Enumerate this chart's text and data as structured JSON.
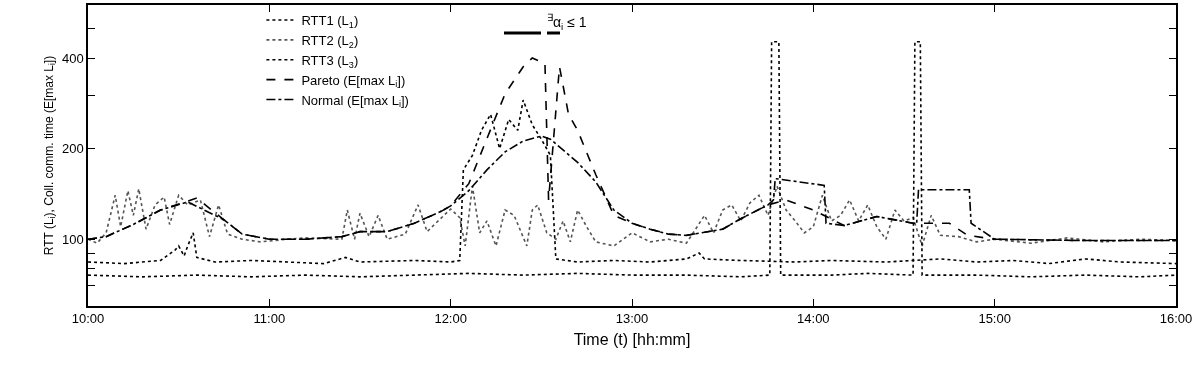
{
  "chart_data": {
    "type": "line",
    "xlabel": "Time (t) [hh:mm]",
    "ylabel": "RTT (L$_{i}$), Coll. comm. time (E[max L$_{i}$])",
    "annotations": [
      "$^{∃}$α$_{i}$ ≤ 1"
    ],
    "xlim": [
      10,
      16
    ],
    "xticks": [
      {
        "value": 10,
        "label": "10:00"
      },
      {
        "value": 11,
        "label": "11:00"
      },
      {
        "value": 12,
        "label": "12:00"
      },
      {
        "value": 13,
        "label": "13:00"
      },
      {
        "value": 14,
        "label": "14:00"
      },
      {
        "value": 15,
        "label": "15:00"
      },
      {
        "value": 16,
        "label": "16:00"
      }
    ],
    "ylim": [
      60,
      600
    ],
    "yticks": [
      {
        "value": 70,
        "label": null
      },
      {
        "value": 80,
        "label": null
      },
      {
        "value": 90,
        "label": null
      },
      100,
      200,
      {
        "value": 300,
        "label": null
      },
      400,
      {
        "value": 500,
        "label": null
      }
    ],
    "log": "y",
    "grid": false,
    "legend": "top left",
    "marker": "none",
    "series": [
      {
        "name": "RTT1 (L$_{1}$)",
        "color": "#000000",
        "line_style": "dotted",
        "x": [
          10,
          10.2,
          10.4,
          10.48,
          10.5,
          10.53,
          10.55,
          10.58,
          10.6,
          10.7,
          10.9,
          11.1,
          11.3,
          11.42,
          11.5,
          11.8,
          12,
          12.05,
          12.07,
          12.12,
          12.17,
          12.22,
          12.27,
          12.32,
          12.37,
          12.4,
          12.45,
          12.5,
          12.55,
          12.58,
          12.7,
          12.9,
          13.1,
          13.3,
          13.37,
          13.4,
          13.6,
          13.9,
          14.1,
          14.4,
          14.7,
          14.9,
          15.1,
          15.3,
          15.5,
          15.7,
          16
        ],
        "values": [
          84,
          83,
          85,
          92,
          95,
          88,
          95,
          105,
          87,
          84,
          85,
          84,
          83,
          87,
          84,
          85,
          84,
          85,
          170,
          190,
          230,
          260,
          200,
          250,
          230,
          290,
          240,
          215,
          190,
          86,
          84,
          85,
          84,
          86,
          90,
          86,
          85,
          84,
          85,
          84,
          86,
          84,
          85,
          83,
          86,
          84,
          83
        ]
      },
      {
        "name": "RTT2 (L$_{2}$)",
        "color": "#555555",
        "line_style": "dotted",
        "x": [
          10,
          10.05,
          10.1,
          10.15,
          10.18,
          10.22,
          10.25,
          10.28,
          10.32,
          10.37,
          10.42,
          10.45,
          10.5,
          10.55,
          10.62,
          10.67,
          10.72,
          10.77,
          10.85,
          10.95,
          11.1,
          11.2,
          11.4,
          11.43,
          11.47,
          11.5,
          11.55,
          11.6,
          11.65,
          11.75,
          11.82,
          11.87,
          11.95,
          12,
          12.05,
          12.08,
          12.12,
          12.16,
          12.2,
          12.25,
          12.3,
          12.35,
          12.42,
          12.45,
          12.48,
          12.53,
          12.58,
          12.62,
          12.66,
          12.7,
          12.75,
          12.8,
          12.9,
          13,
          13.1,
          13.2,
          13.3,
          13.4,
          13.45,
          13.5,
          13.55,
          13.6,
          13.65,
          13.7,
          13.75,
          13.8,
          13.85,
          13.9,
          13.95,
          14,
          14.05,
          14.1,
          14.15,
          14.2,
          14.25,
          14.3,
          14.35,
          14.4,
          14.45,
          14.5,
          14.55,
          14.6,
          14.65,
          14.7,
          14.8,
          14.9,
          15,
          15.2,
          15.4,
          15.6,
          15.8,
          16
        ],
        "values": [
          100,
          97,
          105,
          140,
          110,
          145,
          120,
          147,
          108,
          130,
          138,
          112,
          140,
          130,
          135,
          102,
          130,
          104,
          100,
          98,
          100,
          101,
          100,
          125,
          100,
          122,
          102,
          120,
          100,
          104,
          130,
          106,
          118,
          126,
          118,
          95,
          150,
          105,
          115,
          95,
          125,
          120,
          95,
          125,
          130,
          105,
          100,
          115,
          98,
          125,
          110,
          98,
          95,
          105,
          98,
          100,
          97,
          120,
          105,
          125,
          130,
          115,
          132,
          140,
          120,
          150,
          125,
          115,
          105,
          110,
          140,
          115,
          120,
          135,
          115,
          130,
          110,
          100,
          125,
          115,
          118,
          95,
          120,
          103,
          102,
          98,
          100,
          97,
          101,
          98,
          100,
          99
        ]
      },
      {
        "name": "RTT3 (L$_{3}$)",
        "color": "#000000",
        "line_style": "dotted",
        "x": [
          10,
          10.3,
          10.6,
          10.9,
          11.2,
          11.5,
          11.8,
          12.1,
          12.4,
          12.7,
          13,
          13.3,
          13.6,
          13.76,
          13.77,
          13.81,
          13.82,
          14.1,
          14.3,
          14.55,
          14.56,
          14.59,
          14.6,
          14.9,
          15.2,
          15.5,
          15.8,
          16
        ],
        "values": [
          76,
          75,
          76,
          75,
          76,
          75,
          76,
          77,
          76,
          77,
          76,
          76,
          75,
          76,
          453,
          453,
          76,
          76,
          77,
          76,
          453,
          453,
          76,
          76,
          75,
          76,
          75,
          76
        ]
      },
      {
        "name": "Pareto (E[max L$_{i}$])",
        "color": "#000000",
        "line_style": "dashed",
        "x": [
          10,
          10.1,
          10.25,
          10.4,
          10.6,
          10.75,
          10.85,
          11,
          11.2,
          11.4,
          11.5,
          11.65,
          11.8,
          11.95,
          12,
          12.1,
          12.2,
          12.3,
          12.4,
          12.45,
          12.52,
          12.54,
          12.6,
          12.65,
          12.7,
          12.8,
          12.9,
          13,
          13.1,
          13.2,
          13.3,
          13.5,
          13.6,
          13.75,
          13.85,
          14,
          14.17,
          14.35,
          14.55,
          14.75,
          14.85,
          15,
          15.5,
          16
        ],
        "values": [
          100,
          102,
          112,
          125,
          137,
          116,
          104,
          100,
          100,
          102,
          106,
          106,
          113,
          124,
          129,
          153,
          216,
          304,
          374,
          400,
          383,
          135,
          374,
          260,
          230,
          164,
          120,
          113,
          108,
          104,
          103,
          108,
          117,
          130,
          135,
          125,
          111,
          119,
          113,
          113,
          103,
          100,
          99,
          99
        ]
      },
      {
        "name": "Normal (E[max L$_{i}$])",
        "color": "#000000",
        "line_style": "dashdot",
        "x": [
          10,
          10.1,
          10.25,
          10.4,
          10.55,
          10.75,
          10.85,
          11,
          11.2,
          11.4,
          11.5,
          11.65,
          11.8,
          11.95,
          12,
          12.1,
          12.2,
          12.3,
          12.4,
          12.5,
          12.55,
          12.7,
          12.8,
          12.9,
          13,
          13.1,
          13.2,
          13.3,
          13.5,
          13.6,
          13.75,
          13.78,
          13.79,
          14.06,
          14.07,
          14.17,
          14.35,
          14.55,
          14.57,
          14.58,
          14.86,
          14.87,
          15,
          15.5,
          16
        ],
        "values": [
          100,
          102,
          112,
          125,
          133,
          116,
          104,
          100,
          100,
          102,
          106,
          106,
          113,
          124,
          129,
          145,
          170,
          195,
          212,
          220,
          215,
          180,
          155,
          125,
          113,
          108,
          104,
          103,
          108,
          117,
          130,
          135,
          159,
          151,
          113,
          111,
          119,
          113,
          113,
          146,
          146,
          113,
          100,
          99,
          99
        ]
      }
    ]
  }
}
